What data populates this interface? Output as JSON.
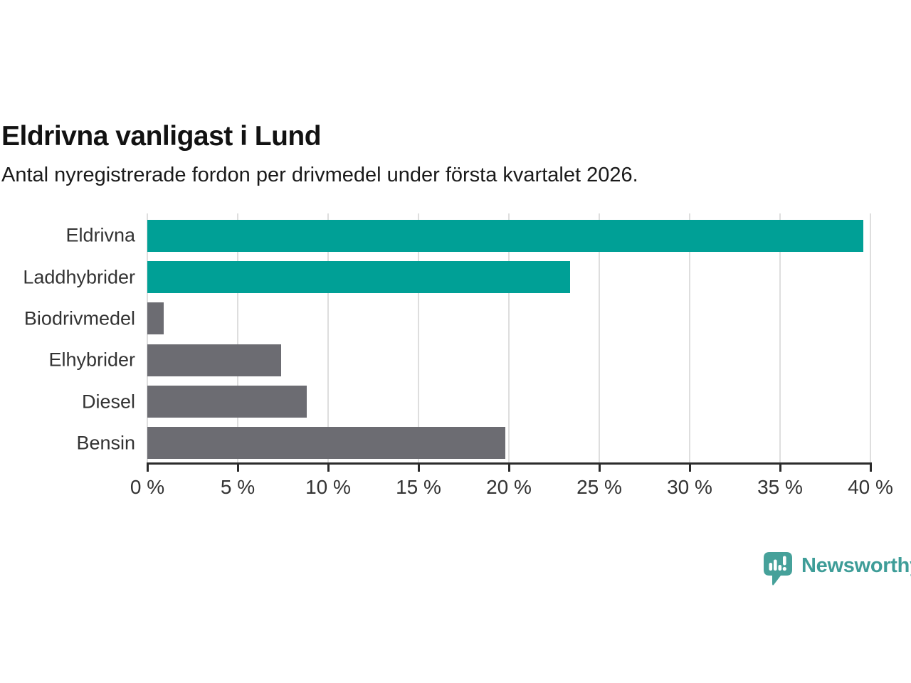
{
  "header": {
    "title": "Eldrivna vanligast i Lund",
    "subtitle": "Antal nyregistrerade fordon per drivmedel under första kvartalet 2026."
  },
  "chart_data": {
    "type": "bar",
    "orientation": "horizontal",
    "title": "Eldrivna vanligast i Lund",
    "subtitle": "Antal nyregistrerade fordon per drivmedel under första kvartalet 2026.",
    "categories": [
      "Eldrivna",
      "Laddhybrider",
      "Biodrivmedel",
      "Elhybrider",
      "Diesel",
      "Bensin"
    ],
    "values": [
      39.6,
      23.4,
      0.9,
      7.4,
      8.8,
      19.8
    ],
    "unit": "%",
    "bar_colors": [
      "#00A096",
      "#00A096",
      "#6C6C72",
      "#6C6C72",
      "#6C6C72",
      "#6C6C72"
    ],
    "highlight_color": "#00A096",
    "default_color": "#6C6C72",
    "xlim": [
      0,
      40
    ],
    "x_ticks": [
      0,
      5,
      10,
      15,
      20,
      25,
      30,
      35,
      40
    ],
    "x_tick_suffix": " %",
    "grid": true,
    "gridline_color": "#DEDEDE",
    "axis_color": "#2B2B2B",
    "label_color": "#333333",
    "legend_position": "none"
  },
  "branding": {
    "logo_text": "Newsworthy",
    "logo_icon": "bar-chart-speech-bubble-icon",
    "logo_color": "#3E9D98",
    "icon_color": "#46A19A"
  }
}
